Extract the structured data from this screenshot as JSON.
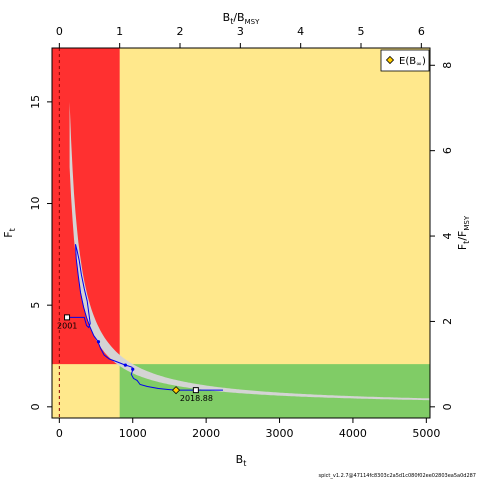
{
  "chart_data": {
    "type": "line",
    "xlabel": "B",
    "xlabel_sub": "t",
    "ylabel": "F",
    "ylabel_sub": "t",
    "top_label": "B",
    "top_label_sub": "t",
    "top_label_tail": "/B",
    "top_label_tail_sub": "MSY",
    "right_label": "F",
    "right_label_sub": "t",
    "right_label_tail": "/F",
    "right_label_tail_sub": "MSY",
    "xlim": [
      -100,
      5050
    ],
    "ylim": [
      -0.55,
      17.65
    ],
    "x_ticks": [
      0,
      1000,
      2000,
      3000,
      4000,
      5000
    ],
    "x_tick_labels": [
      "0",
      "1000",
      "2000",
      "3000",
      "4000",
      "5000"
    ],
    "y_ticks": [
      0,
      5,
      10,
      15
    ],
    "y_tick_labels": [
      "0",
      "5",
      "10",
      "15"
    ],
    "top_ticks": [
      0,
      1,
      2,
      3,
      4,
      5,
      6
    ],
    "top_tick_labels": [
      "0",
      "1",
      "2",
      "3",
      "4",
      "5",
      "6"
    ],
    "right_ticks": [
      0,
      2,
      4,
      6,
      8
    ],
    "right_tick_labels": [
      "0",
      "2",
      "4",
      "6",
      "8"
    ],
    "bmsy": 822,
    "fmsy": 2.1,
    "regions": {
      "red": "#ff3030",
      "yellow": "#ffe88c",
      "green": "#80cc66"
    },
    "envelope_color": "#d4d4d4",
    "envelope_k_lower": 1650,
    "envelope_k_upper": 2100,
    "envelope_x_start": 140,
    "trajectory_color": "#0000ee",
    "trajectory": [
      [
        105,
        4.4
      ],
      [
        180,
        4.4
      ],
      [
        260,
        4.4
      ],
      [
        340,
        4.4
      ],
      [
        370,
        4.0
      ],
      [
        400,
        3.9
      ],
      [
        420,
        4.1
      ],
      [
        380,
        5.2
      ],
      [
        340,
        5.8
      ],
      [
        300,
        6.5
      ],
      [
        270,
        7.2
      ],
      [
        240,
        7.7
      ],
      [
        220,
        8.0
      ],
      [
        230,
        7.3
      ],
      [
        260,
        6.4
      ],
      [
        290,
        5.6
      ],
      [
        330,
        4.9
      ],
      [
        370,
        4.4
      ],
      [
        420,
        3.9
      ],
      [
        470,
        3.5
      ],
      [
        520,
        3.25
      ],
      [
        560,
        2.9
      ],
      [
        610,
        2.55
      ],
      [
        680,
        2.35
      ],
      [
        760,
        2.25
      ],
      [
        830,
        2.15
      ],
      [
        900,
        2.05
      ],
      [
        950,
        2.0
      ],
      [
        990,
        1.95
      ],
      [
        1000,
        1.8
      ],
      [
        980,
        1.6
      ],
      [
        1010,
        1.4
      ],
      [
        1060,
        1.3
      ],
      [
        1100,
        1.1
      ],
      [
        1200,
        1.0
      ],
      [
        1350,
        0.9
      ],
      [
        1480,
        0.85
      ],
      [
        1580,
        0.82
      ],
      [
        1700,
        0.82
      ],
      [
        1850,
        0.82
      ],
      [
        2000,
        0.82
      ],
      [
        2150,
        0.82
      ],
      [
        2230,
        0.82
      ]
    ],
    "markers": [
      {
        "x": 533,
        "y": 3.2,
        "color": "#0000ee"
      },
      {
        "x": 900,
        "y": 2.05,
        "color": "#0000ee"
      },
      {
        "x": 1000,
        "y": 1.85,
        "color": "#0000ee"
      }
    ],
    "start_point": {
      "x": 105,
      "y": 4.4,
      "label": "2001"
    },
    "end_point": {
      "x": 1860,
      "y": 0.82,
      "label": "2018.88"
    },
    "expected_point": {
      "x": 1590,
      "y": 0.82,
      "color": "#ffcc00"
    },
    "bmsy_dashed_x": 0,
    "legend": {
      "label": "E(B",
      "label_sub": "∞",
      "label_tail": ")",
      "placement": "top-right"
    },
    "footnote": "spict_v1.2.7@47114fc8303c2a5d1c080f02ee02803ea5a0d287"
  }
}
